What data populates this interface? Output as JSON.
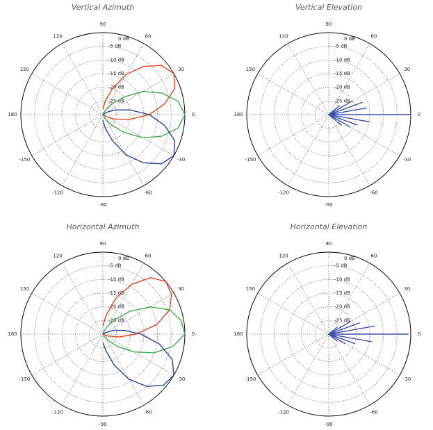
{
  "chart_data": [
    {
      "type": "polar",
      "title": "Vertical Azimuth",
      "rlim": [
        -30,
        0
      ],
      "rticks": [
        {
          "value": 0,
          "label": "0 dB"
        },
        {
          "value": -5,
          "label": "-5 dB"
        },
        {
          "value": -10,
          "label": "-10 dB"
        },
        {
          "value": -15,
          "label": "-15 dB"
        },
        {
          "value": -20,
          "label": "-20 dB"
        },
        {
          "value": -25,
          "label": "-25 dB"
        }
      ],
      "thetaticks": [
        0,
        30,
        60,
        90,
        120,
        150,
        180,
        -150,
        -120,
        -90,
        -60,
        -30
      ],
      "grid": true,
      "theta": [
        -90,
        -80,
        -70,
        -60,
        -50,
        -40,
        -30,
        -20,
        -10,
        0,
        10,
        20,
        30,
        40,
        50,
        60,
        70,
        80,
        90
      ],
      "series": [
        {
          "color": "#e8401c",
          "values": [
            -30,
            -30,
            -30,
            -30,
            -30,
            -30,
            -28,
            -25,
            -20,
            -13,
            -7,
            -2,
            0,
            -2,
            -7,
            -13,
            -20,
            -25,
            -28
          ]
        },
        {
          "color": "#3aae4a",
          "values": [
            -30,
            -30,
            -30,
            -28,
            -25,
            -20,
            -13,
            -7,
            -2,
            0,
            -2,
            -7,
            -13,
            -20,
            -25,
            -28,
            -30,
            -30,
            -30
          ]
        },
        {
          "color": "#2a3f9c",
          "values": [
            -28,
            -25,
            -20,
            -13,
            -7,
            -2,
            0,
            -2,
            -7,
            -13,
            -20,
            -25,
            -28,
            -30,
            -30,
            -30,
            -30,
            -30,
            -30
          ]
        }
      ]
    },
    {
      "type": "polar",
      "title": "Vertical Elevation",
      "rlim": [
        -30,
        0
      ],
      "rticks": [
        {
          "value": 0,
          "label": "0 dB"
        },
        {
          "value": -5,
          "label": "-5 dB"
        },
        {
          "value": -10,
          "label": "-10 dB"
        },
        {
          "value": -15,
          "label": "-15 dB"
        },
        {
          "value": -20,
          "label": "-20 dB"
        },
        {
          "value": -25,
          "label": "-25 dB"
        }
      ],
      "thetaticks": [
        0,
        30,
        60,
        90,
        120,
        150,
        180,
        -150,
        -120,
        -90,
        -60,
        -30
      ],
      "grid": true,
      "theta": [
        -45,
        -40,
        -35,
        -30,
        -25,
        -20,
        -15,
        -10,
        -5,
        0,
        5,
        10,
        15,
        20,
        25,
        30,
        35,
        40,
        45
      ],
      "series": [
        {
          "color": "#3a4fb0",
          "values": [
            -30,
            -24,
            -30,
            -21,
            -30,
            -19,
            -30,
            -15,
            -30,
            0,
            -30,
            -16,
            -30,
            -17,
            -30,
            -20,
            -30,
            -25,
            -30
          ]
        }
      ]
    },
    {
      "type": "polar",
      "title": "Horizontal Azimuth",
      "rlim": [
        -30,
        0
      ],
      "rticks": [
        {
          "value": 0,
          "label": "0 dB"
        },
        {
          "value": -5,
          "label": "-5 dB"
        },
        {
          "value": -10,
          "label": "-10 dB"
        },
        {
          "value": -15,
          "label": "-15 dB"
        },
        {
          "value": -20,
          "label": "-20 dB"
        },
        {
          "value": -25,
          "label": "-25 dB"
        }
      ],
      "thetaticks": [
        0,
        30,
        60,
        90,
        120,
        150,
        180,
        -150,
        -120,
        -90,
        -60,
        -30
      ],
      "grid": true,
      "theta": [
        -90,
        -80,
        -70,
        -60,
        -50,
        -40,
        -30,
        -20,
        -10,
        0,
        10,
        20,
        30,
        40,
        50,
        60,
        70,
        80,
        90
      ],
      "series": [
        {
          "color": "#e8401c",
          "values": [
            -30,
            -30,
            -30,
            -30,
            -30,
            -30,
            -30,
            -28,
            -24,
            -18,
            -10,
            -4,
            -1,
            0,
            -3,
            -9,
            -16,
            -23,
            -27
          ]
        },
        {
          "color": "#3aae4a",
          "values": [
            -30,
            -30,
            -30,
            -29,
            -27,
            -23,
            -17,
            -10,
            -4,
            0,
            -1,
            -4,
            -10,
            -17,
            -23,
            -27,
            -29,
            -30,
            -30
          ]
        },
        {
          "color": "#2a3f9c",
          "values": [
            -27,
            -24,
            -18,
            -11,
            -5,
            -1,
            0,
            -3,
            -9,
            -16,
            -22,
            -26,
            -29,
            -30,
            -30,
            -30,
            -30,
            -30,
            -30
          ]
        }
      ]
    },
    {
      "type": "polar",
      "title": "Horizontal Elevation",
      "rlim": [
        -30,
        0
      ],
      "rticks": [
        {
          "value": 0,
          "label": "0 dB"
        },
        {
          "value": -5,
          "label": "-5 dB"
        },
        {
          "value": -10,
          "label": "-10 dB"
        },
        {
          "value": -15,
          "label": "-15 dB"
        },
        {
          "value": -20,
          "label": "-20 dB"
        },
        {
          "value": -25,
          "label": "-25 dB"
        }
      ],
      "thetaticks": [
        0,
        30,
        60,
        90,
        120,
        150,
        180,
        -150,
        -120,
        -90,
        -60,
        -30
      ],
      "grid": true,
      "theta": [
        -45,
        -40,
        -35,
        -30,
        -25,
        -20,
        -15,
        -10,
        -5,
        0,
        5,
        10,
        15,
        20,
        25,
        30,
        35,
        40,
        45
      ],
      "series": [
        {
          "color": "#3a4fb0",
          "values": [
            -30,
            -26,
            -30,
            -23,
            -30,
            -20,
            -30,
            -14,
            -30,
            -1,
            -30,
            -13,
            -30,
            -18,
            -30,
            -21,
            -30,
            -26,
            -30
          ]
        }
      ]
    }
  ]
}
